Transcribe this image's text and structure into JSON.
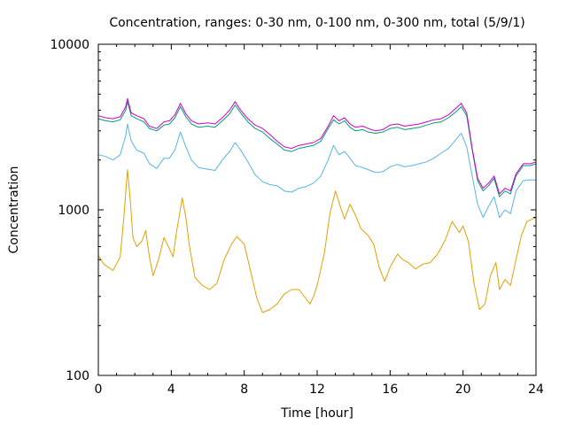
{
  "chart_data": {
    "type": "line",
    "title": "Concentration, ranges: 0-30 nm, 0-100 nm, 0-300 nm, total (5/9/1)",
    "xlabel": "Time [hour]",
    "ylabel": "Concentration",
    "xlim": [
      0,
      24
    ],
    "ylim": [
      100,
      10000
    ],
    "yscale": "log",
    "grid": false,
    "legend": "none",
    "x_ticks": [
      0,
      4,
      8,
      12,
      16,
      20,
      24
    ],
    "x_tick_labels": [
      "0",
      "4",
      "8",
      "12",
      "16",
      "20",
      "24"
    ],
    "y_ticks": [
      100,
      1000,
      10000
    ],
    "y_tick_labels": [
      "100",
      "1000",
      "10000"
    ],
    "series": [
      {
        "color": "#e69f00",
        "points": [
          [
            0,
            530
          ],
          [
            0.3,
            470
          ],
          [
            0.8,
            430
          ],
          [
            1.2,
            520
          ],
          [
            1.4,
            900
          ],
          [
            1.6,
            1750
          ],
          [
            1.75,
            1150
          ],
          [
            1.9,
            680
          ],
          [
            2.1,
            600
          ],
          [
            2.4,
            650
          ],
          [
            2.6,
            750
          ],
          [
            2.8,
            520
          ],
          [
            3.0,
            400
          ],
          [
            3.3,
            500
          ],
          [
            3.6,
            680
          ],
          [
            3.9,
            580
          ],
          [
            4.1,
            520
          ],
          [
            4.3,
            750
          ],
          [
            4.6,
            1180
          ],
          [
            4.8,
            900
          ],
          [
            5.0,
            600
          ],
          [
            5.3,
            390
          ],
          [
            5.7,
            350
          ],
          [
            6.1,
            330
          ],
          [
            6.5,
            360
          ],
          [
            6.9,
            500
          ],
          [
            7.3,
            620
          ],
          [
            7.6,
            690
          ],
          [
            8.0,
            620
          ],
          [
            8.3,
            450
          ],
          [
            8.7,
            290
          ],
          [
            9.0,
            240
          ],
          [
            9.4,
            250
          ],
          [
            9.8,
            270
          ],
          [
            10.2,
            310
          ],
          [
            10.6,
            330
          ],
          [
            11.0,
            330
          ],
          [
            11.4,
            290
          ],
          [
            11.6,
            270
          ],
          [
            11.8,
            300
          ],
          [
            12.0,
            350
          ],
          [
            12.4,
            550
          ],
          [
            12.7,
            950
          ],
          [
            13.0,
            1300
          ],
          [
            13.3,
            1020
          ],
          [
            13.5,
            880
          ],
          [
            13.8,
            1080
          ],
          [
            14.1,
            930
          ],
          [
            14.4,
            770
          ],
          [
            14.8,
            700
          ],
          [
            15.1,
            620
          ],
          [
            15.4,
            450
          ],
          [
            15.7,
            370
          ],
          [
            16.0,
            450
          ],
          [
            16.4,
            540
          ],
          [
            16.7,
            500
          ],
          [
            17.0,
            480
          ],
          [
            17.4,
            440
          ],
          [
            17.8,
            470
          ],
          [
            18.2,
            480
          ],
          [
            18.6,
            540
          ],
          [
            19.0,
            650
          ],
          [
            19.4,
            850
          ],
          [
            19.8,
            730
          ],
          [
            20.0,
            800
          ],
          [
            20.3,
            640
          ],
          [
            20.6,
            360
          ],
          [
            20.9,
            250
          ],
          [
            21.2,
            270
          ],
          [
            21.5,
            400
          ],
          [
            21.8,
            480
          ],
          [
            22.0,
            330
          ],
          [
            22.3,
            380
          ],
          [
            22.6,
            350
          ],
          [
            22.9,
            500
          ],
          [
            23.2,
            700
          ],
          [
            23.5,
            850
          ],
          [
            24,
            900
          ]
        ]
      },
      {
        "color": "#56b4e9",
        "points": [
          [
            0,
            2150
          ],
          [
            0.4,
            2100
          ],
          [
            0.8,
            2000
          ],
          [
            1.2,
            2150
          ],
          [
            1.5,
            2800
          ],
          [
            1.6,
            3300
          ],
          [
            1.8,
            2600
          ],
          [
            2.1,
            2300
          ],
          [
            2.5,
            2200
          ],
          [
            2.8,
            1900
          ],
          [
            3.2,
            1780
          ],
          [
            3.6,
            2050
          ],
          [
            3.9,
            2050
          ],
          [
            4.2,
            2300
          ],
          [
            4.5,
            2950
          ],
          [
            4.8,
            2400
          ],
          [
            5.1,
            2000
          ],
          [
            5.5,
            1800
          ],
          [
            6.0,
            1760
          ],
          [
            6.4,
            1730
          ],
          [
            6.8,
            2000
          ],
          [
            7.2,
            2250
          ],
          [
            7.5,
            2550
          ],
          [
            7.8,
            2300
          ],
          [
            8.2,
            1950
          ],
          [
            8.6,
            1630
          ],
          [
            9.0,
            1480
          ],
          [
            9.4,
            1420
          ],
          [
            9.8,
            1400
          ],
          [
            10.2,
            1300
          ],
          [
            10.6,
            1280
          ],
          [
            11.0,
            1350
          ],
          [
            11.4,
            1380
          ],
          [
            11.8,
            1450
          ],
          [
            12.2,
            1600
          ],
          [
            12.6,
            2000
          ],
          [
            12.9,
            2450
          ],
          [
            13.2,
            2150
          ],
          [
            13.5,
            2250
          ],
          [
            13.8,
            2050
          ],
          [
            14.1,
            1850
          ],
          [
            14.5,
            1800
          ],
          [
            14.8,
            1750
          ],
          [
            15.2,
            1680
          ],
          [
            15.6,
            1700
          ],
          [
            16.0,
            1820
          ],
          [
            16.4,
            1880
          ],
          [
            16.8,
            1820
          ],
          [
            17.2,
            1850
          ],
          [
            17.6,
            1900
          ],
          [
            18.0,
            1950
          ],
          [
            18.4,
            2050
          ],
          [
            18.8,
            2200
          ],
          [
            19.2,
            2350
          ],
          [
            19.6,
            2650
          ],
          [
            19.9,
            2900
          ],
          [
            20.2,
            2400
          ],
          [
            20.5,
            1600
          ],
          [
            20.8,
            1080
          ],
          [
            21.1,
            900
          ],
          [
            21.4,
            1050
          ],
          [
            21.7,
            1200
          ],
          [
            22.0,
            900
          ],
          [
            22.3,
            1000
          ],
          [
            22.6,
            950
          ],
          [
            22.9,
            1300
          ],
          [
            23.3,
            1500
          ],
          [
            23.7,
            1520
          ],
          [
            24,
            1510
          ]
        ]
      },
      {
        "color": "#009e73",
        "points": [
          [
            0,
            3550
          ],
          [
            0.4,
            3450
          ],
          [
            0.8,
            3400
          ],
          [
            1.2,
            3500
          ],
          [
            1.5,
            4000
          ],
          [
            1.6,
            4500
          ],
          [
            1.8,
            3700
          ],
          [
            2.1,
            3550
          ],
          [
            2.5,
            3400
          ],
          [
            2.8,
            3100
          ],
          [
            3.2,
            3000
          ],
          [
            3.6,
            3250
          ],
          [
            3.9,
            3300
          ],
          [
            4.2,
            3600
          ],
          [
            4.5,
            4200
          ],
          [
            4.8,
            3650
          ],
          [
            5.1,
            3300
          ],
          [
            5.5,
            3150
          ],
          [
            6.0,
            3200
          ],
          [
            6.4,
            3150
          ],
          [
            6.8,
            3450
          ],
          [
            7.2,
            3800
          ],
          [
            7.5,
            4300
          ],
          [
            7.8,
            3850
          ],
          [
            8.2,
            3400
          ],
          [
            8.6,
            3100
          ],
          [
            9.0,
            2950
          ],
          [
            9.4,
            2700
          ],
          [
            9.8,
            2500
          ],
          [
            10.2,
            2300
          ],
          [
            10.6,
            2250
          ],
          [
            11.0,
            2350
          ],
          [
            11.4,
            2400
          ],
          [
            11.8,
            2450
          ],
          [
            12.2,
            2600
          ],
          [
            12.6,
            3100
          ],
          [
            12.9,
            3500
          ],
          [
            13.2,
            3300
          ],
          [
            13.5,
            3450
          ],
          [
            13.8,
            3150
          ],
          [
            14.1,
            3000
          ],
          [
            14.5,
            3050
          ],
          [
            14.8,
            2950
          ],
          [
            15.2,
            2900
          ],
          [
            15.6,
            2950
          ],
          [
            16.0,
            3100
          ],
          [
            16.4,
            3150
          ],
          [
            16.8,
            3050
          ],
          [
            17.2,
            3100
          ],
          [
            17.6,
            3150
          ],
          [
            18.0,
            3250
          ],
          [
            18.4,
            3350
          ],
          [
            18.8,
            3400
          ],
          [
            19.2,
            3600
          ],
          [
            19.6,
            3900
          ],
          [
            19.9,
            4200
          ],
          [
            20.2,
            3700
          ],
          [
            20.5,
            2300
          ],
          [
            20.8,
            1500
          ],
          [
            21.1,
            1300
          ],
          [
            21.4,
            1400
          ],
          [
            21.7,
            1550
          ],
          [
            22.0,
            1200
          ],
          [
            22.3,
            1300
          ],
          [
            22.6,
            1250
          ],
          [
            22.9,
            1600
          ],
          [
            23.3,
            1850
          ],
          [
            23.7,
            1850
          ],
          [
            24,
            1900
          ]
        ]
      },
      {
        "color": "#cc00cc",
        "points": [
          [
            0,
            3700
          ],
          [
            0.4,
            3600
          ],
          [
            0.8,
            3550
          ],
          [
            1.2,
            3650
          ],
          [
            1.5,
            4200
          ],
          [
            1.6,
            4700
          ],
          [
            1.8,
            3850
          ],
          [
            2.1,
            3700
          ],
          [
            2.5,
            3550
          ],
          [
            2.8,
            3200
          ],
          [
            3.2,
            3100
          ],
          [
            3.6,
            3400
          ],
          [
            3.9,
            3450
          ],
          [
            4.2,
            3750
          ],
          [
            4.5,
            4400
          ],
          [
            4.8,
            3800
          ],
          [
            5.1,
            3450
          ],
          [
            5.5,
            3300
          ],
          [
            6.0,
            3350
          ],
          [
            6.4,
            3300
          ],
          [
            6.8,
            3600
          ],
          [
            7.2,
            4000
          ],
          [
            7.5,
            4500
          ],
          [
            7.8,
            4000
          ],
          [
            8.2,
            3550
          ],
          [
            8.6,
            3250
          ],
          [
            9.0,
            3100
          ],
          [
            9.4,
            2850
          ],
          [
            9.8,
            2600
          ],
          [
            10.2,
            2400
          ],
          [
            10.6,
            2350
          ],
          [
            11.0,
            2450
          ],
          [
            11.4,
            2500
          ],
          [
            11.8,
            2550
          ],
          [
            12.2,
            2700
          ],
          [
            12.6,
            3200
          ],
          [
            12.9,
            3700
          ],
          [
            13.2,
            3450
          ],
          [
            13.5,
            3600
          ],
          [
            13.8,
            3300
          ],
          [
            14.1,
            3150
          ],
          [
            14.5,
            3200
          ],
          [
            14.8,
            3100
          ],
          [
            15.2,
            3000
          ],
          [
            15.6,
            3050
          ],
          [
            16.0,
            3250
          ],
          [
            16.4,
            3300
          ],
          [
            16.8,
            3200
          ],
          [
            17.2,
            3250
          ],
          [
            17.6,
            3300
          ],
          [
            18.0,
            3400
          ],
          [
            18.4,
            3500
          ],
          [
            18.8,
            3550
          ],
          [
            19.2,
            3750
          ],
          [
            19.6,
            4100
          ],
          [
            19.9,
            4400
          ],
          [
            20.2,
            3850
          ],
          [
            20.5,
            2350
          ],
          [
            20.8,
            1550
          ],
          [
            21.1,
            1350
          ],
          [
            21.4,
            1450
          ],
          [
            21.7,
            1600
          ],
          [
            22.0,
            1250
          ],
          [
            22.3,
            1350
          ],
          [
            22.6,
            1300
          ],
          [
            22.9,
            1650
          ],
          [
            23.3,
            1900
          ],
          [
            23.7,
            1900
          ],
          [
            24,
            1950
          ]
        ]
      }
    ]
  }
}
